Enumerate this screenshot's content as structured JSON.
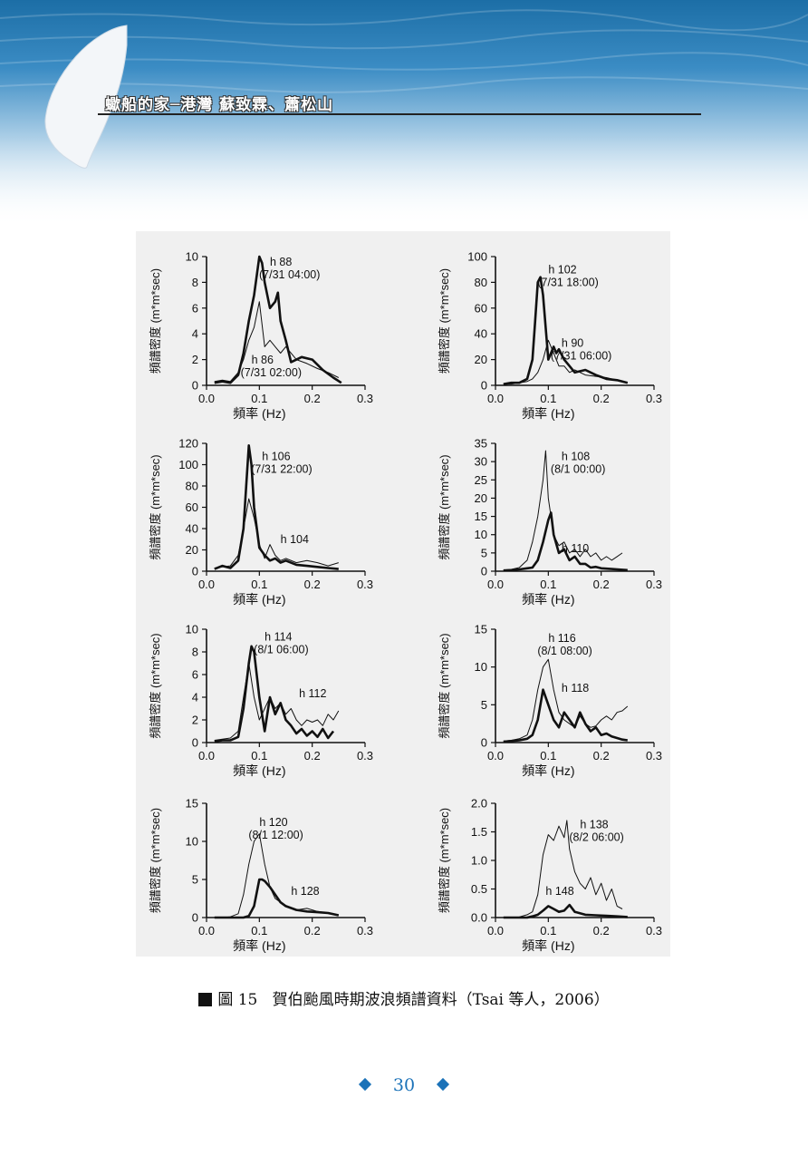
{
  "header": {
    "title": "蠍船的家─港灣 蘇致霖、蕭松山",
    "accent_color": "#1e6fb0"
  },
  "caption": {
    "label": "圖 15",
    "text": "賀伯颱風時期波浪頻譜資料（Tsai 等人，2006）"
  },
  "page_number": "30",
  "chart_data": [
    {
      "type": "line",
      "xlabel": "頻率 (Hz)",
      "ylabel": "頻譜密度 (m*m*sec)",
      "xlim": [
        0,
        0.3
      ],
      "ylim": [
        0,
        10
      ],
      "xticks": [
        "0.0",
        "0.1",
        "0.2",
        "0.3"
      ],
      "yticks": [
        "0",
        "2",
        "4",
        "6",
        "8",
        "10"
      ],
      "series": [
        {
          "name": "h 88",
          "label": "h 88 (7/31 04:00)",
          "style": "thick",
          "x": [
            0.015,
            0.03,
            0.045,
            0.06,
            0.07,
            0.08,
            0.09,
            0.1,
            0.105,
            0.11,
            0.12,
            0.13,
            0.135,
            0.14,
            0.15,
            0.16,
            0.18,
            0.2,
            0.22,
            0.24,
            0.255
          ],
          "y": [
            0.2,
            0.3,
            0.2,
            0.8,
            2.5,
            5,
            7,
            10,
            9.5,
            8,
            6,
            6.5,
            7.2,
            5,
            3.5,
            1.8,
            2.2,
            2,
            1.2,
            0.6,
            0.2
          ]
        },
        {
          "name": "h 86",
          "label": "h 86 (7/31 02:00)",
          "style": "thin",
          "x": [
            0.015,
            0.03,
            0.045,
            0.06,
            0.07,
            0.08,
            0.09,
            0.1,
            0.11,
            0.12,
            0.13,
            0.14,
            0.15,
            0.17,
            0.19,
            0.21,
            0.23,
            0.25
          ],
          "y": [
            0.3,
            0.4,
            0.3,
            1,
            2,
            3.5,
            4.5,
            6.5,
            3,
            3.5,
            3,
            2.5,
            3,
            2,
            1.7,
            1.3,
            1,
            0.6
          ]
        }
      ]
    },
    {
      "type": "line",
      "xlabel": "頻率 (Hz)",
      "ylabel": "頻譜密度 (m*m*sec)",
      "xlim": [
        0,
        0.3
      ],
      "ylim": [
        0,
        100
      ],
      "xticks": [
        "0.0",
        "0.1",
        "0.2",
        "0.3"
      ],
      "yticks": [
        "0",
        "20",
        "40",
        "60",
        "80",
        "100"
      ],
      "series": [
        {
          "name": "h 102",
          "label": "h 102 (7/31 18:00)",
          "style": "thick",
          "x": [
            0.015,
            0.03,
            0.045,
            0.06,
            0.07,
            0.075,
            0.08,
            0.085,
            0.09,
            0.1,
            0.11,
            0.115,
            0.12,
            0.13,
            0.14,
            0.15,
            0.17,
            0.19,
            0.21,
            0.23,
            0.25
          ],
          "y": [
            1,
            2,
            2,
            5,
            20,
            50,
            80,
            84,
            70,
            20,
            30,
            25,
            28,
            20,
            15,
            10,
            12,
            8,
            5,
            4,
            2
          ]
        },
        {
          "name": "h 90",
          "label": "h 90 (7/31 06:00)",
          "style": "thin",
          "x": [
            0.015,
            0.03,
            0.045,
            0.06,
            0.07,
            0.08,
            0.09,
            0.1,
            0.11,
            0.12,
            0.13,
            0.14,
            0.15,
            0.17,
            0.19,
            0.21,
            0.23,
            0.25
          ],
          "y": [
            1,
            1,
            2,
            3,
            5,
            10,
            20,
            35,
            25,
            15,
            15,
            10,
            12,
            8,
            7,
            6,
            4,
            2
          ]
        }
      ]
    },
    {
      "type": "line",
      "xlabel": "頻率 (Hz)",
      "ylabel": "頻譜密度 (m*m*sec)",
      "xlim": [
        0,
        0.3
      ],
      "ylim": [
        0,
        120
      ],
      "xticks": [
        "0.0",
        "0.1",
        "0.2",
        "0.3"
      ],
      "yticks": [
        "0",
        "20",
        "40",
        "60",
        "80",
        "100",
        "120"
      ],
      "series": [
        {
          "name": "h 106",
          "label": "h 106 (7/31 22:00)",
          "style": "thick",
          "x": [
            0.015,
            0.03,
            0.045,
            0.06,
            0.07,
            0.075,
            0.08,
            0.085,
            0.09,
            0.1,
            0.11,
            0.12,
            0.13,
            0.14,
            0.15,
            0.17,
            0.19,
            0.21,
            0.23,
            0.25
          ],
          "y": [
            2,
            5,
            3,
            10,
            40,
            80,
            118,
            100,
            60,
            22,
            15,
            10,
            12,
            8,
            10,
            6,
            5,
            4,
            3,
            2
          ]
        },
        {
          "name": "h 104",
          "label": "h 104",
          "style": "thin",
          "x": [
            0.015,
            0.03,
            0.045,
            0.06,
            0.07,
            0.08,
            0.09,
            0.1,
            0.11,
            0.12,
            0.13,
            0.14,
            0.15,
            0.17,
            0.19,
            0.21,
            0.23,
            0.25
          ],
          "y": [
            3,
            4,
            5,
            15,
            40,
            68,
            50,
            25,
            12,
            25,
            15,
            10,
            12,
            8,
            10,
            8,
            5,
            8
          ]
        }
      ]
    },
    {
      "type": "line",
      "xlabel": "頻率 (Hz)",
      "ylabel": "頻譜密度 (m*m*sec)",
      "xlim": [
        0,
        0.3
      ],
      "ylim": [
        0,
        35
      ],
      "xticks": [
        "0.0",
        "0.1",
        "0.2",
        "0.3"
      ],
      "yticks": [
        "0",
        "5",
        "10",
        "15",
        "20",
        "25",
        "30",
        "35"
      ],
      "series": [
        {
          "name": "h 108",
          "label": "h 108 (8/1 00:00)",
          "style": "thin",
          "x": [
            0.015,
            0.03,
            0.045,
            0.06,
            0.07,
            0.08,
            0.09,
            0.095,
            0.1,
            0.11,
            0.12,
            0.13,
            0.14,
            0.15,
            0.16,
            0.17,
            0.18,
            0.19,
            0.2,
            0.21,
            0.22,
            0.23,
            0.24
          ],
          "y": [
            0.3,
            0.5,
            1,
            3,
            8,
            15,
            25,
            33,
            20,
            10,
            7,
            8,
            5,
            6,
            4,
            6,
            4,
            5,
            3,
            4,
            3,
            4,
            5
          ]
        },
        {
          "name": "h 110",
          "label": "h 110",
          "style": "thick",
          "x": [
            0.015,
            0.03,
            0.045,
            0.06,
            0.07,
            0.08,
            0.09,
            0.1,
            0.105,
            0.11,
            0.12,
            0.13,
            0.14,
            0.15,
            0.16,
            0.17,
            0.18,
            0.19,
            0.2,
            0.22,
            0.24,
            0.25
          ],
          "y": [
            0.2,
            0.3,
            0.5,
            0.8,
            1,
            3,
            8,
            14,
            16,
            10,
            5,
            6,
            3,
            4,
            2,
            2,
            1,
            1.2,
            0.8,
            0.6,
            0.4,
            0.3
          ]
        }
      ]
    },
    {
      "type": "line",
      "xlabel": "頻率 (Hz)",
      "ylabel": "頻譜密度 (m*m*sec)",
      "xlim": [
        0,
        0.3
      ],
      "ylim": [
        0,
        10
      ],
      "xticks": [
        "0.0",
        "0.1",
        "0.2",
        "0.3"
      ],
      "yticks": [
        "0",
        "2",
        "4",
        "6",
        "8",
        "10"
      ],
      "series": [
        {
          "name": "h 114",
          "label": "h 114 (8/1 06:00)",
          "style": "thick",
          "x": [
            0.015,
            0.03,
            0.045,
            0.06,
            0.07,
            0.08,
            0.085,
            0.09,
            0.1,
            0.11,
            0.12,
            0.13,
            0.14,
            0.15,
            0.16,
            0.17,
            0.18,
            0.19,
            0.2,
            0.21,
            0.22,
            0.23,
            0.24
          ],
          "y": [
            0.1,
            0.2,
            0.2,
            0.5,
            3,
            7,
            8.5,
            8,
            4,
            1,
            4,
            2.5,
            3.5,
            2,
            1.5,
            0.8,
            1.2,
            0.6,
            1,
            0.5,
            1.2,
            0.4,
            1
          ]
        },
        {
          "name": "h 112",
          "label": "h 112",
          "style": "thin",
          "x": [
            0.015,
            0.03,
            0.045,
            0.06,
            0.07,
            0.08,
            0.09,
            0.1,
            0.11,
            0.12,
            0.13,
            0.14,
            0.15,
            0.16,
            0.17,
            0.18,
            0.19,
            0.2,
            0.21,
            0.22,
            0.23,
            0.24,
            0.25
          ],
          "y": [
            0.2,
            0.3,
            0.4,
            1,
            4,
            7,
            4,
            2,
            3,
            4,
            3,
            3.5,
            2.5,
            3,
            2,
            1.5,
            2,
            1.8,
            2,
            1.5,
            2.5,
            2,
            2.8
          ]
        }
      ]
    },
    {
      "type": "line",
      "xlabel": "頻率 (Hz)",
      "ylabel": "頻譜密度 (m*m*sec)",
      "xlim": [
        0,
        0.3
      ],
      "ylim": [
        0,
        15
      ],
      "xticks": [
        "0.0",
        "0.1",
        "0.2",
        "0.3"
      ],
      "yticks": [
        "0",
        "5",
        "10",
        "15"
      ],
      "series": [
        {
          "name": "h 116",
          "label": "h 116 (8/1 08:00)",
          "style": "thin",
          "x": [
            0.015,
            0.03,
            0.045,
            0.06,
            0.07,
            0.08,
            0.09,
            0.1,
            0.11,
            0.12,
            0.13,
            0.14,
            0.15,
            0.16,
            0.17,
            0.18,
            0.19,
            0.2,
            0.21,
            0.22,
            0.23,
            0.24,
            0.25
          ],
          "y": [
            0.2,
            0.3,
            0.5,
            1,
            3,
            7,
            10,
            11,
            7,
            4,
            3,
            2.5,
            2,
            3.5,
            2.5,
            2,
            2.2,
            3,
            3.5,
            3,
            4,
            4.2,
            4.8
          ]
        },
        {
          "name": "h 118",
          "label": "h 118",
          "style": "thick",
          "x": [
            0.015,
            0.03,
            0.045,
            0.06,
            0.07,
            0.08,
            0.09,
            0.1,
            0.11,
            0.12,
            0.13,
            0.14,
            0.15,
            0.16,
            0.17,
            0.18,
            0.19,
            0.2,
            0.21,
            0.22,
            0.23,
            0.24,
            0.25
          ],
          "y": [
            0.1,
            0.2,
            0.3,
            0.5,
            1,
            3,
            7,
            5,
            3,
            2,
            4,
            3,
            2,
            4,
            2.5,
            1.5,
            2,
            1,
            1.2,
            0.8,
            0.6,
            0.4,
            0.3
          ]
        }
      ]
    },
    {
      "type": "line",
      "xlabel": "頻率 (Hz)",
      "ylabel": "頻譜密度 (m*m*sec)",
      "xlim": [
        0,
        0.3
      ],
      "ylim": [
        0,
        15
      ],
      "xticks": [
        "0.0",
        "0.1",
        "0.2",
        "0.3"
      ],
      "yticks": [
        "0",
        "5",
        "10",
        "15"
      ],
      "series": [
        {
          "name": "h 120",
          "label": "h 120 (8/1 12:00)",
          "style": "thin",
          "x": [
            0.015,
            0.03,
            0.045,
            0.06,
            0.07,
            0.08,
            0.09,
            0.1,
            0.11,
            0.12,
            0.13,
            0.14,
            0.15,
            0.17,
            0.19,
            0.21,
            0.23,
            0.25
          ],
          "y": [
            0,
            0,
            0.1,
            0.5,
            3,
            7,
            10,
            11,
            7,
            4,
            2.5,
            2,
            1.5,
            1,
            1.2,
            0.8,
            0.6,
            0.3
          ]
        },
        {
          "name": "h 128",
          "label": "h 128",
          "style": "thick",
          "x": [
            0.015,
            0.03,
            0.045,
            0.06,
            0.07,
            0.08,
            0.09,
            0.1,
            0.105,
            0.11,
            0.12,
            0.13,
            0.14,
            0.15,
            0.17,
            0.19,
            0.21,
            0.23,
            0.25
          ],
          "y": [
            0,
            0,
            0,
            0,
            0,
            0.2,
            1.5,
            5,
            5,
            4.8,
            4,
            3,
            2,
            1.5,
            1,
            0.8,
            0.7,
            0.6,
            0.3
          ]
        }
      ]
    },
    {
      "type": "line",
      "xlabel": "頻率 (Hz)",
      "ylabel": "頻譜密度 (m*m*sec)",
      "xlim": [
        0,
        0.3
      ],
      "ylim": [
        0,
        2.0
      ],
      "xticks": [
        "0.0",
        "0.1",
        "0.2",
        "0.3"
      ],
      "yticks": [
        "0.0",
        "0.5",
        "1.0",
        "1.5",
        "2.0"
      ],
      "series": [
        {
          "name": "h 138",
          "label": "h 138 (8/2 06:00)",
          "style": "thin",
          "x": [
            0.015,
            0.03,
            0.045,
            0.06,
            0.07,
            0.08,
            0.09,
            0.1,
            0.11,
            0.12,
            0.13,
            0.135,
            0.14,
            0.15,
            0.16,
            0.17,
            0.18,
            0.19,
            0.2,
            0.21,
            0.22,
            0.23,
            0.24
          ],
          "y": [
            0,
            0,
            0.01,
            0.05,
            0.1,
            0.4,
            1.1,
            1.45,
            1.35,
            1.6,
            1.4,
            1.7,
            1.2,
            0.8,
            0.6,
            0.5,
            0.7,
            0.4,
            0.6,
            0.3,
            0.5,
            0.2,
            0.15
          ]
        },
        {
          "name": "h 148",
          "label": "h 148",
          "style": "thick",
          "x": [
            0.015,
            0.03,
            0.045,
            0.06,
            0.07,
            0.08,
            0.09,
            0.1,
            0.11,
            0.12,
            0.13,
            0.14,
            0.15,
            0.17,
            0.19,
            0.21,
            0.23,
            0.25
          ],
          "y": [
            0,
            0,
            0,
            0,
            0.02,
            0.05,
            0.12,
            0.2,
            0.15,
            0.1,
            0.12,
            0.22,
            0.1,
            0.05,
            0.04,
            0.03,
            0.02,
            0.01
          ]
        }
      ]
    }
  ]
}
